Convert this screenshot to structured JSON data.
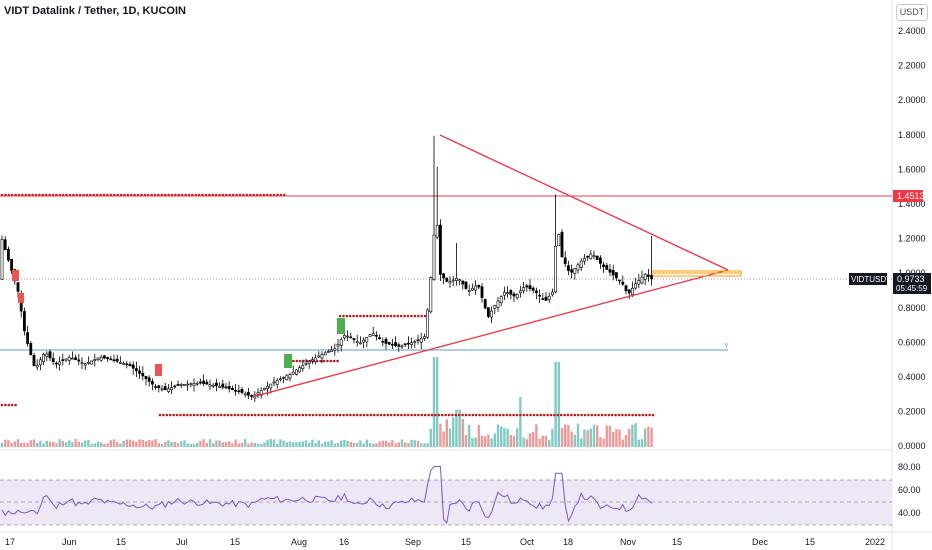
{
  "header": {
    "title": "VIDT Datalink / Tether, 1D, KUCOIN",
    "unit_badge": "USDT"
  },
  "price_scale": {
    "ticks": [
      "2.4000",
      "2.2000",
      "2.0000",
      "1.8000",
      "1.6000",
      "1.4000",
      "1.2000",
      "1.0000",
      "0.8000",
      "0.6000",
      "0.4000",
      "0.2000",
      "0.0000"
    ],
    "resistance_label": "1.4513",
    "symbol_label": "VIDTUSDT",
    "last_price": "0.9733",
    "countdown": "05:45:59"
  },
  "rsi_scale": {
    "ticks": [
      "80.00",
      "60.00",
      "40.00"
    ]
  },
  "time_axis": {
    "labels": [
      "17",
      "Jun",
      "15",
      "Jul",
      "15",
      "Aug",
      "16",
      "Sep",
      "15",
      "Oct",
      "18",
      "Nov",
      "15",
      "Dec",
      "15",
      "2022"
    ]
  },
  "colors": {
    "up": "#26a69a",
    "down": "#000000",
    "trendline": "#f23645",
    "resistance": "#f23645",
    "support": "#5b9bd5",
    "dotted": "#b71c1c",
    "rsi_line": "#7e57c2",
    "rsi_band": "#ede7f6",
    "projection": "#ff9800"
  },
  "chart_data": {
    "type": "candlestick",
    "title": "VIDT Datalink / Tether, 1D, KUCOIN",
    "ylim": [
      0,
      2.5
    ],
    "x": [
      "May 17",
      "Jun",
      "Jun 15",
      "Jul",
      "Jul 15",
      "Aug",
      "Aug 16",
      "Sep",
      "Sep 15",
      "Oct",
      "Oct 18",
      "Nov"
    ],
    "close_approx": [
      1.05,
      0.5,
      0.48,
      0.32,
      0.33,
      0.46,
      0.62,
      1.05,
      0.93,
      0.82,
      1.02,
      0.97
    ],
    "last_price": 0.9733,
    "horizontal_levels": {
      "resistance": 1.4513,
      "support": 0.56
    },
    "triangle": {
      "upper_from": [
        1.8
      ],
      "lower_from": [
        0.28
      ],
      "apex": 1.0
    },
    "rsi": {
      "ylim": [
        30,
        90
      ],
      "upper_band": 70,
      "lower_band": 30,
      "mid": 50
    }
  }
}
